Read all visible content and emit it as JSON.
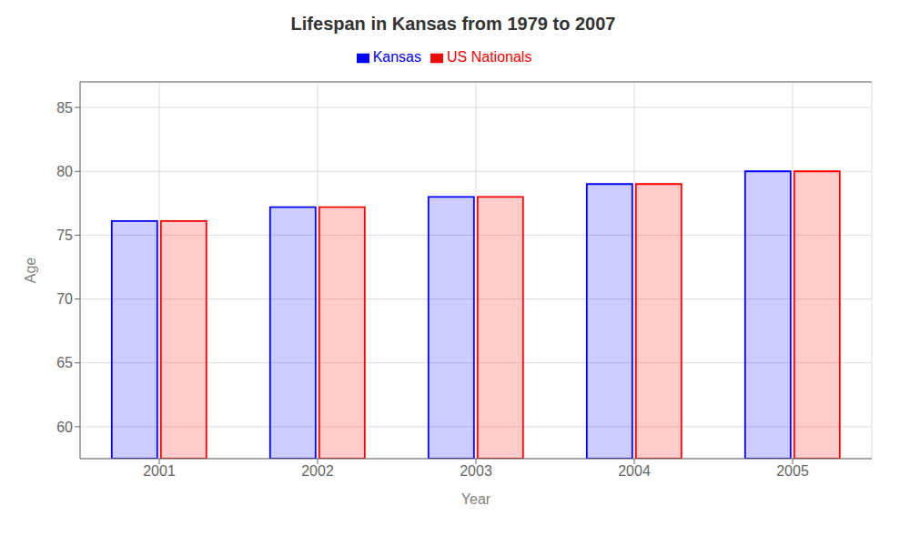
{
  "chart_data": {
    "type": "bar",
    "title": "Lifespan in Kansas from 1979 to 2007",
    "x_label": "Year",
    "y_label": "Age",
    "categories": [
      "2001",
      "2002",
      "2003",
      "2004",
      "2005"
    ],
    "series": [
      {
        "name": "Kansas",
        "color": "#0000ff",
        "values": [
          76.1,
          77.2,
          78.0,
          79.0,
          80.0
        ]
      },
      {
        "name": "US Nationals",
        "color": "#ff0000",
        "values": [
          76.1,
          77.2,
          78.0,
          79.0,
          80.0
        ]
      }
    ],
    "ylim": [
      57.5,
      87
    ],
    "yticks": [
      60,
      65,
      70,
      75,
      80,
      85
    ],
    "grid": true,
    "legend": "top"
  }
}
